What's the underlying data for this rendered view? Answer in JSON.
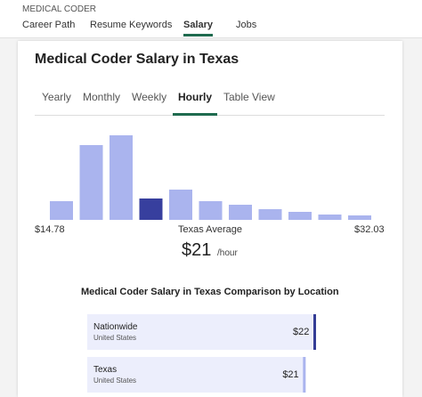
{
  "header": {
    "title": "MEDICAL CODER",
    "tabs": [
      "Career Path",
      "Resume Keywords",
      "Salary",
      "Jobs"
    ],
    "active_tab": 2
  },
  "card": {
    "title": "Medical Coder Salary in Texas",
    "tabs": [
      "Yearly",
      "Monthly",
      "Weekly",
      "Hourly",
      "Table View"
    ],
    "active_tab": 3,
    "histogram": {
      "bars": [
        21,
        84,
        95,
        24,
        34,
        21,
        17,
        12,
        9,
        6,
        5
      ],
      "highlight": 3,
      "color": "#aab4ee",
      "highlight_color": "#373f9e",
      "min_label": "$14.78",
      "center_label": "Texas Average",
      "max_label": "$32.03"
    },
    "average": {
      "value_label": "$21",
      "unit": "/hour"
    },
    "comparison": {
      "title": "Medical Coder Salary in Texas Comparison by Location",
      "rows": [
        {
          "name": "Nationwide",
          "sub": "United States",
          "value": 22,
          "value_label": "$22",
          "color": "#343d96"
        },
        {
          "name": "Texas",
          "sub": "United States",
          "value": 21,
          "value_label": "$21",
          "color": "#aab4ee"
        }
      ]
    }
  }
}
